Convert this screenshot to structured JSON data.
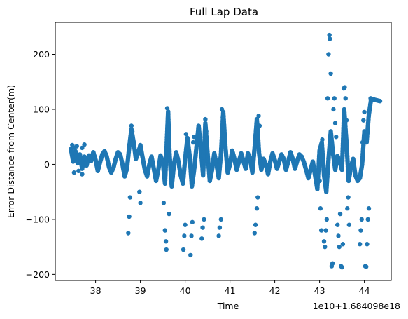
{
  "chart_data": {
    "type": "scatter",
    "title": "Full Lap Data",
    "xlabel": "Time",
    "ylabel": "Error Distance from Center(m)",
    "offset_text": "1e10+1.684098e18",
    "xlim": [
      37.1,
      44.6
    ],
    "ylim": [
      -211,
      258
    ],
    "xticks": [
      38,
      39,
      40,
      41,
      42,
      43,
      44
    ],
    "yticks": [
      -200,
      -100,
      0,
      100,
      200
    ],
    "grid": false,
    "marker_color": "#1f77b4",
    "series": [
      {
        "trace": [
          [
            37.45,
            28
          ],
          [
            37.5,
            5
          ],
          [
            37.55,
            24
          ],
          [
            37.6,
            2
          ],
          [
            37.65,
            18
          ],
          [
            37.7,
            -8
          ],
          [
            37.75,
            14
          ],
          [
            37.8,
            -2
          ],
          [
            37.85,
            16
          ],
          [
            37.9,
            6
          ],
          [
            37.95,
            22
          ],
          [
            38.0,
            8
          ],
          [
            38.05,
            -12
          ],
          [
            38.1,
            4
          ],
          [
            38.15,
            18
          ],
          [
            38.2,
            24
          ],
          [
            38.25,
            14
          ],
          [
            38.3,
            -5
          ],
          [
            38.35,
            -15
          ],
          [
            38.4,
            -6
          ],
          [
            38.45,
            10
          ],
          [
            38.5,
            22
          ],
          [
            38.55,
            18
          ],
          [
            38.6,
            0
          ],
          [
            38.65,
            -22
          ],
          [
            38.7,
            -8
          ],
          [
            38.75,
            30
          ],
          [
            38.8,
            64
          ],
          [
            38.85,
            40
          ],
          [
            38.9,
            10
          ],
          [
            38.95,
            20
          ],
          [
            39.0,
            35
          ],
          [
            39.05,
            12
          ],
          [
            39.1,
            -10
          ],
          [
            39.15,
            -22
          ],
          [
            39.2,
            0
          ],
          [
            39.25,
            14
          ],
          [
            39.3,
            -8
          ],
          [
            39.35,
            -30
          ],
          [
            39.4,
            -10
          ],
          [
            39.45,
            16
          ],
          [
            39.5,
            5
          ],
          [
            39.55,
            -35
          ],
          [
            39.6,
            60
          ],
          [
            39.62,
            96
          ],
          [
            39.65,
            20
          ],
          [
            39.7,
            -40
          ],
          [
            39.75,
            0
          ],
          [
            39.8,
            22
          ],
          [
            39.85,
            5
          ],
          [
            39.9,
            -20
          ],
          [
            39.95,
            -35
          ],
          [
            40.0,
            10
          ],
          [
            40.05,
            48
          ],
          [
            40.1,
            15
          ],
          [
            40.15,
            -40
          ],
          [
            40.2,
            -10
          ],
          [
            40.25,
            30
          ],
          [
            40.3,
            70
          ],
          [
            40.35,
            30
          ],
          [
            40.4,
            -20
          ],
          [
            40.45,
            75
          ],
          [
            40.5,
            20
          ],
          [
            40.55,
            -30
          ],
          [
            40.6,
            -10
          ],
          [
            40.65,
            20
          ],
          [
            40.7,
            0
          ],
          [
            40.75,
            -25
          ],
          [
            40.8,
            20
          ],
          [
            40.85,
            95
          ],
          [
            40.9,
            30
          ],
          [
            40.95,
            -15
          ],
          [
            41.0,
            0
          ],
          [
            41.05,
            25
          ],
          [
            41.1,
            10
          ],
          [
            41.15,
            -10
          ],
          [
            41.2,
            5
          ],
          [
            41.25,
            20
          ],
          [
            41.3,
            6
          ],
          [
            41.35,
            -8
          ],
          [
            41.4,
            20
          ],
          [
            41.45,
            10
          ],
          [
            41.5,
            -15
          ],
          [
            41.55,
            30
          ],
          [
            41.6,
            82
          ],
          [
            41.65,
            20
          ],
          [
            41.7,
            -10
          ],
          [
            41.75,
            10
          ],
          [
            41.8,
            0
          ],
          [
            41.85,
            -18
          ],
          [
            41.9,
            5
          ],
          [
            41.95,
            20
          ],
          [
            42.0,
            8
          ],
          [
            42.05,
            -8
          ],
          [
            42.1,
            5
          ],
          [
            42.15,
            18
          ],
          [
            42.2,
            10
          ],
          [
            42.25,
            -10
          ],
          [
            42.3,
            5
          ],
          [
            42.35,
            22
          ],
          [
            42.4,
            10
          ],
          [
            42.45,
            -8
          ],
          [
            42.5,
            6
          ],
          [
            42.55,
            18
          ],
          [
            42.6,
            14
          ],
          [
            42.65,
            4
          ],
          [
            42.7,
            -10
          ],
          [
            42.75,
            -25
          ],
          [
            42.8,
            -10
          ],
          [
            42.85,
            5
          ],
          [
            42.9,
            -20
          ],
          [
            42.95,
            -45
          ],
          [
            43.0,
            25
          ],
          [
            43.05,
            40
          ],
          [
            43.1,
            -20
          ],
          [
            43.15,
            -50
          ],
          [
            43.2,
            10
          ],
          [
            43.25,
            60
          ],
          [
            43.3,
            20
          ],
          [
            43.35,
            -10
          ],
          [
            43.4,
            15
          ],
          [
            43.45,
            5
          ],
          [
            43.5,
            -10
          ],
          [
            43.55,
            100
          ],
          [
            43.6,
            40
          ],
          [
            43.65,
            -30
          ],
          [
            43.7,
            -5
          ],
          [
            43.75,
            10
          ],
          [
            43.8,
            -20
          ],
          [
            43.85,
            -30
          ],
          [
            43.9,
            -25
          ],
          [
            43.95,
            0
          ],
          [
            44.0,
            60
          ],
          [
            44.05,
            40
          ],
          [
            44.1,
            90
          ],
          [
            44.15,
            118
          ],
          [
            44.2,
            118
          ],
          [
            44.25,
            117
          ],
          [
            44.3,
            116
          ],
          [
            44.35,
            115
          ]
        ],
        "extra_points": [
          [
            37.48,
            35
          ],
          [
            37.53,
            30
          ],
          [
            37.58,
            33
          ],
          [
            37.7,
            30
          ],
          [
            37.75,
            36
          ],
          [
            37.52,
            -15
          ],
          [
            37.62,
            -12
          ],
          [
            37.7,
            -18
          ],
          [
            38.73,
            -125
          ],
          [
            38.75,
            -95
          ],
          [
            38.77,
            -60
          ],
          [
            38.8,
            70
          ],
          [
            38.82,
            60
          ],
          [
            39.0,
            -70
          ],
          [
            38.98,
            -50
          ],
          [
            39.52,
            -70
          ],
          [
            39.55,
            -120
          ],
          [
            39.57,
            -140
          ],
          [
            39.58,
            -155
          ],
          [
            39.6,
            102
          ],
          [
            39.62,
            80
          ],
          [
            39.64,
            -90
          ],
          [
            39.96,
            -155
          ],
          [
            39.98,
            -130
          ],
          [
            40.0,
            -110
          ],
          [
            40.02,
            55
          ],
          [
            40.12,
            -165
          ],
          [
            40.14,
            -130
          ],
          [
            40.16,
            -105
          ],
          [
            40.18,
            40
          ],
          [
            40.2,
            50
          ],
          [
            40.37,
            -135
          ],
          [
            40.39,
            -115
          ],
          [
            40.42,
            -100
          ],
          [
            40.45,
            82
          ],
          [
            40.47,
            60
          ],
          [
            40.75,
            -130
          ],
          [
            40.77,
            -115
          ],
          [
            40.8,
            -100
          ],
          [
            40.82,
            100
          ],
          [
            40.84,
            85
          ],
          [
            41.55,
            -125
          ],
          [
            41.57,
            -110
          ],
          [
            41.6,
            -80
          ],
          [
            41.62,
            -60
          ],
          [
            41.64,
            88
          ],
          [
            41.66,
            70
          ],
          [
            43.0,
            -30
          ],
          [
            43.02,
            -80
          ],
          [
            43.04,
            -120
          ],
          [
            43.06,
            45
          ],
          [
            43.1,
            -140
          ],
          [
            43.12,
            -150
          ],
          [
            43.14,
            -120
          ],
          [
            43.16,
            -100
          ],
          [
            43.18,
            120
          ],
          [
            43.2,
            200
          ],
          [
            43.22,
            235
          ],
          [
            43.23,
            228
          ],
          [
            43.25,
            165
          ],
          [
            43.27,
            -185
          ],
          [
            43.29,
            -180
          ],
          [
            43.31,
            100
          ],
          [
            43.33,
            120
          ],
          [
            43.35,
            75
          ],
          [
            43.37,
            50
          ],
          [
            43.4,
            -110
          ],
          [
            43.42,
            -130
          ],
          [
            43.44,
            -150
          ],
          [
            43.46,
            -90
          ],
          [
            43.48,
            -185
          ],
          [
            43.5,
            -187
          ],
          [
            43.52,
            -145
          ],
          [
            43.54,
            138
          ],
          [
            43.56,
            140
          ],
          [
            43.58,
            120
          ],
          [
            43.6,
            80
          ],
          [
            43.62,
            -80
          ],
          [
            43.64,
            -60
          ],
          [
            43.66,
            -110
          ],
          [
            43.9,
            -145
          ],
          [
            43.92,
            -120
          ],
          [
            43.94,
            -100
          ],
          [
            43.96,
            40
          ],
          [
            43.98,
            80
          ],
          [
            44.0,
            95
          ],
          [
            44.02,
            -185
          ],
          [
            44.04,
            -186
          ],
          [
            44.06,
            -145
          ],
          [
            44.08,
            -100
          ],
          [
            44.1,
            -80
          ],
          [
            44.12,
            100
          ],
          [
            44.14,
            120
          ]
        ]
      }
    ]
  }
}
